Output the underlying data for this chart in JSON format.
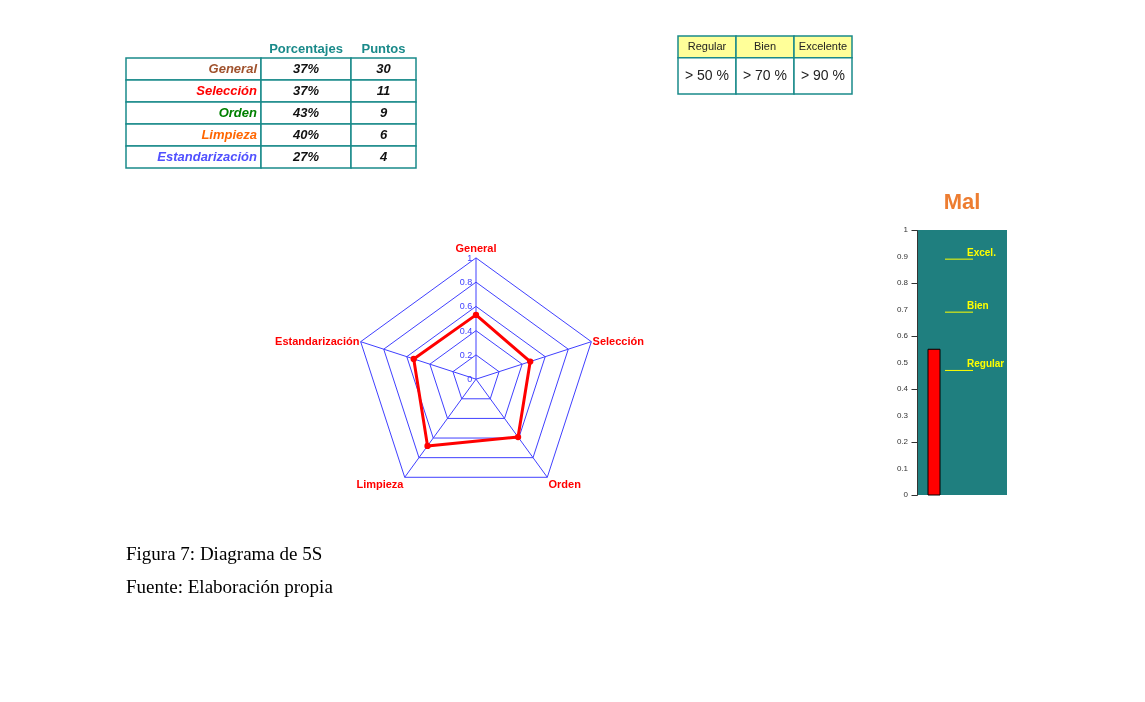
{
  "chart_data": [
    {
      "type": "other",
      "categories": [
        "General",
        "Selección",
        "Orden",
        "Limpieza",
        "Estandarización"
      ],
      "data_labels": true,
      "series": [
        {
          "name": "Porcentajes",
          "values": [
            37,
            37,
            43,
            40,
            27
          ],
          "value_labels": [
            "37%",
            "37%",
            "43%",
            "40%",
            "27%"
          ]
        },
        {
          "name": "Puntos",
          "values": [
            30,
            11,
            9,
            6,
            4
          ]
        }
      ]
    },
    {
      "type": "other",
      "categories": [
        "Regular",
        "Bien",
        "Excelente"
      ],
      "values": [
        50,
        70,
        90
      ],
      "value_labels": [
        "> 50 %",
        "> 70 %",
        "> 90 %"
      ]
    },
    {
      "type": "radar",
      "categories": [
        "General",
        "Selección",
        "Orden",
        "Limpieza",
        "Estandarización"
      ],
      "series": [
        {
          "color": "#ff0000",
          "values": [
            0.53,
            0.47,
            0.59,
            0.68,
            0.54
          ]
        }
      ],
      "ylim": [
        0,
        1
      ],
      "yticks": [
        0,
        0.2,
        0.4,
        0.6,
        0.8,
        1
      ],
      "marker": "circle",
      "annotations": [
        "Figura 7: Diagrama de 5S",
        "Fuente: Elaboración propia"
      ]
    },
    {
      "type": "bar",
      "title": "Mal",
      "categories": [
        null
      ],
      "values": [
        0.55
      ],
      "colors": [
        "#ff0000"
      ],
      "ylim": [
        0,
        1
      ],
      "yticks": [
        0,
        0.1,
        0.2,
        0.3,
        0.4,
        0.5,
        0.6,
        0.7,
        0.8,
        0.9,
        1
      ],
      "tick_labels": "y",
      "ref_lines": [
        {
          "axis": "y",
          "value": 0.89,
          "label": "Excel.",
          "color": "#ffff00"
        },
        {
          "axis": "y",
          "value": 0.69,
          "label": "Bien",
          "color": "#ffff00"
        },
        {
          "axis": "y",
          "value": 0.47,
          "label": "Regular",
          "color": "#ffff00"
        }
      ]
    }
  ]
}
